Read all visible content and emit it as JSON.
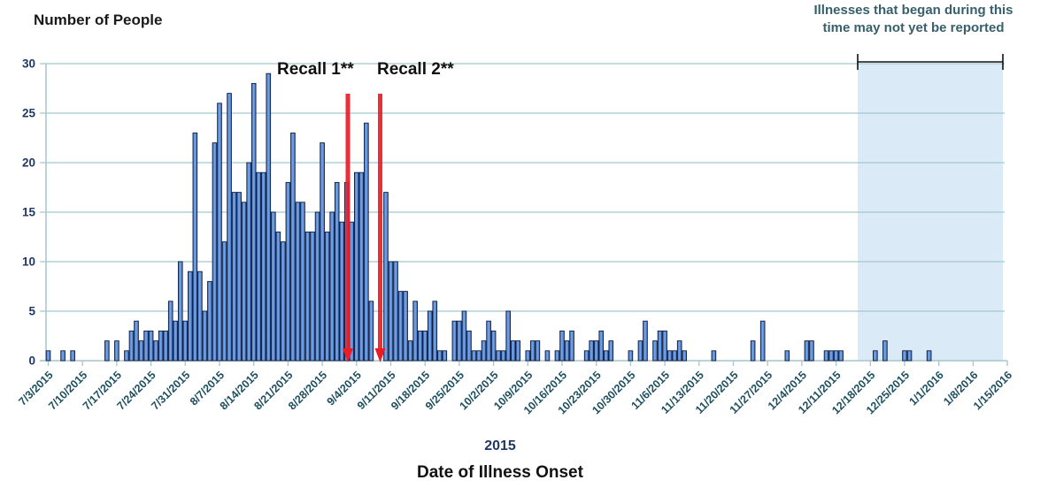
{
  "figure": {
    "y_axis_title": "Number of People",
    "x_axis_year": "2015",
    "x_axis_title": "Date of Illness Onset",
    "annotation_lines": [
      "Illnesses that began during this",
      "time may not yet be reported"
    ]
  },
  "chart_data": {
    "type": "bar",
    "title": "",
    "xlabel": "Date of Illness Onset",
    "ylabel": "Number of People",
    "ylim": [
      0,
      30
    ],
    "ytick_interval": 5,
    "yticks": [
      0,
      5,
      10,
      15,
      20,
      25,
      30
    ],
    "grid": true,
    "x_unit": "day of illness onset",
    "x_tick_labels": [
      "7/3/2015",
      "7/10/2015",
      "7/17/2015",
      "7/24/2015",
      "7/31/2015",
      "8/7/2015",
      "8/14/2015",
      "8/21/2015",
      "8/28/2015",
      "9/4/2015",
      "9/11/2015",
      "9/18/2015",
      "9/25/2015",
      "10/2/2015",
      "10/9/2015",
      "10/16/2015",
      "10/23/2015",
      "10/30/2015",
      "11/6/2015",
      "11/13/2015",
      "11/20/2015",
      "11/27/2015",
      "12/4/2015",
      "12/11/2015",
      "12/18/2015",
      "12/25/2015",
      "1/1/2016",
      "1/8/2016",
      "1/15/2016"
    ],
    "recall_lines": [
      {
        "label": "Recall 1**"
      },
      {
        "label": "Recall 2**"
      }
    ],
    "shaded_region_note": "Illnesses that began during this time may not yet be reported",
    "daily_counts": [
      [
        "7/3/2015",
        1
      ],
      [
        "7/6/2015",
        1
      ],
      [
        "7/8/2015",
        1
      ],
      [
        "7/15/2015",
        2
      ],
      [
        "7/17/2015",
        2
      ],
      [
        "7/19/2015",
        1
      ],
      [
        "7/20/2015",
        3
      ],
      [
        "7/21/2015",
        4
      ],
      [
        "7/22/2015",
        2
      ],
      [
        "7/23/2015",
        3
      ],
      [
        "7/24/2015",
        3
      ],
      [
        "7/25/2015",
        2
      ],
      [
        "7/26/2015",
        3
      ],
      [
        "7/27/2015",
        3
      ],
      [
        "7/28/2015",
        6
      ],
      [
        "7/29/2015",
        4
      ],
      [
        "7/30/2015",
        10
      ],
      [
        "7/31/2015",
        4
      ],
      [
        "8/1/2015",
        9
      ],
      [
        "8/2/2015",
        23
      ],
      [
        "8/3/2015",
        9
      ],
      [
        "8/4/2015",
        5
      ],
      [
        "8/5/2015",
        8
      ],
      [
        "8/6/2015",
        22
      ],
      [
        "8/7/2015",
        26
      ],
      [
        "8/8/2015",
        12
      ],
      [
        "8/9/2015",
        27
      ],
      [
        "8/10/2015",
        17
      ],
      [
        "8/11/2015",
        17
      ],
      [
        "8/12/2015",
        16
      ],
      [
        "8/13/2015",
        20
      ],
      [
        "8/14/2015",
        28
      ],
      [
        "8/15/2015",
        19
      ],
      [
        "8/16/2015",
        19
      ],
      [
        "8/17/2015",
        29
      ],
      [
        "8/18/2015",
        15
      ],
      [
        "8/19/2015",
        13
      ],
      [
        "8/20/2015",
        12
      ],
      [
        "8/21/2015",
        18
      ],
      [
        "8/22/2015",
        23
      ],
      [
        "8/23/2015",
        16
      ],
      [
        "8/24/2015",
        16
      ],
      [
        "8/25/2015",
        13
      ],
      [
        "8/26/2015",
        13
      ],
      [
        "8/27/2015",
        15
      ],
      [
        "8/28/2015",
        22
      ],
      [
        "8/29/2015",
        13
      ],
      [
        "8/30/2015",
        15
      ],
      [
        "8/31/2015",
        18
      ],
      [
        "9/1/2015",
        14
      ],
      [
        "9/2/2015",
        18
      ],
      [
        "9/3/2015",
        14
      ],
      [
        "9/4/2015",
        19
      ],
      [
        "9/5/2015",
        19
      ],
      [
        "9/6/2015",
        24
      ],
      [
        "9/7/2015",
        6
      ],
      [
        "9/10/2015",
        17
      ],
      [
        "9/11/2015",
        10
      ],
      [
        "9/12/2015",
        10
      ],
      [
        "9/13/2015",
        7
      ],
      [
        "9/14/2015",
        7
      ],
      [
        "9/15/2015",
        2
      ],
      [
        "9/16/2015",
        6
      ],
      [
        "9/17/2015",
        3
      ],
      [
        "9/18/2015",
        3
      ],
      [
        "9/19/2015",
        5
      ],
      [
        "9/20/2015",
        6
      ],
      [
        "9/21/2015",
        1
      ],
      [
        "9/22/2015",
        1
      ],
      [
        "9/24/2015",
        4
      ],
      [
        "9/25/2015",
        4
      ],
      [
        "9/26/2015",
        5
      ],
      [
        "9/27/2015",
        3
      ],
      [
        "9/28/2015",
        1
      ],
      [
        "9/29/2015",
        1
      ],
      [
        "9/30/2015",
        2
      ],
      [
        "10/1/2015",
        4
      ],
      [
        "10/2/2015",
        3
      ],
      [
        "10/3/2015",
        1
      ],
      [
        "10/4/2015",
        1
      ],
      [
        "10/5/2015",
        5
      ],
      [
        "10/6/2015",
        2
      ],
      [
        "10/7/2015",
        2
      ],
      [
        "10/9/2015",
        1
      ],
      [
        "10/10/2015",
        2
      ],
      [
        "10/11/2015",
        2
      ],
      [
        "10/13/2015",
        1
      ],
      [
        "10/15/2015",
        1
      ],
      [
        "10/16/2015",
        3
      ],
      [
        "10/17/2015",
        2
      ],
      [
        "10/18/2015",
        3
      ],
      [
        "10/21/2015",
        1
      ],
      [
        "10/22/2015",
        2
      ],
      [
        "10/23/2015",
        2
      ],
      [
        "10/24/2015",
        3
      ],
      [
        "10/25/2015",
        1
      ],
      [
        "10/26/2015",
        2
      ],
      [
        "10/30/2015",
        1
      ],
      [
        "11/1/2015",
        2
      ],
      [
        "11/2/2015",
        4
      ],
      [
        "11/4/2015",
        2
      ],
      [
        "11/5/2015",
        3
      ],
      [
        "11/6/2015",
        3
      ],
      [
        "11/7/2015",
        1
      ],
      [
        "11/8/2015",
        1
      ],
      [
        "11/9/2015",
        2
      ],
      [
        "11/10/2015",
        1
      ],
      [
        "11/16/2015",
        1
      ],
      [
        "11/24/2015",
        2
      ],
      [
        "11/26/2015",
        4
      ],
      [
        "12/1/2015",
        1
      ],
      [
        "12/5/2015",
        2
      ],
      [
        "12/6/2015",
        2
      ],
      [
        "12/9/2015",
        1
      ],
      [
        "12/10/2015",
        1
      ],
      [
        "12/11/2015",
        1
      ],
      [
        "12/12/2015",
        1
      ],
      [
        "12/19/2015",
        1
      ],
      [
        "12/21/2015",
        2
      ],
      [
        "12/25/2015",
        1
      ],
      [
        "12/26/2015",
        1
      ],
      [
        "12/30/2015",
        1
      ]
    ]
  },
  "colors": {
    "bar_fill": "#3f74c4",
    "bar_fill_light": "#7aa6e4",
    "bar_stroke": "#101c3f",
    "gridline": "#a5c6cb",
    "axis": "#a5c6cb",
    "recall_line": "#ed1c24",
    "shaded_region": "#daeaf7",
    "bracket": "#111111",
    "y_tick_label": "#203864",
    "x_tick_label": "#1d4f60",
    "annotation_text": "#37606c",
    "year_label": "#1f3864",
    "text": "#111111"
  }
}
